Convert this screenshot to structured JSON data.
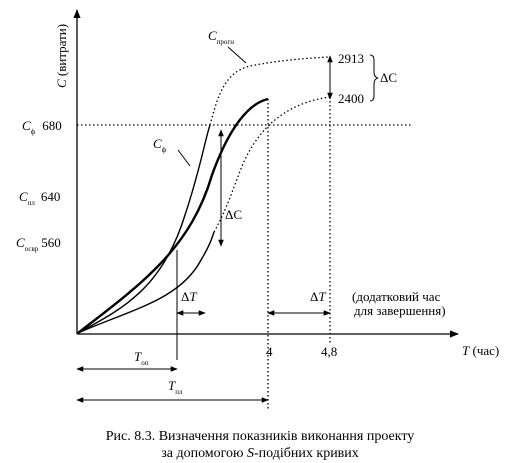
{
  "chart_data": {
    "type": "line",
    "xlabel_var": "T",
    "xlabel_unit": " (час)",
    "ylabel_var": "C",
    "ylabel_unit": " (витрати)",
    "x_ticks": [
      "4",
      "4,8"
    ],
    "y_ticks": [
      {
        "sym": "C",
        "sub": "ф",
        "value": "680"
      },
      {
        "sym": "C",
        "sub": "пл",
        "value": "640"
      },
      {
        "sym": "C",
        "sub": "освр",
        "value": "560"
      }
    ],
    "series": [
      {
        "name_sym": "C",
        "name_sub": "ф"
      },
      {
        "name_sym": "C",
        "name_sub": "прогн"
      }
    ],
    "right_values": [
      "2913",
      "2400"
    ],
    "delta_c": "ΔC",
    "delta_t": "ΔT",
    "extra_time_note": [
      "(додатковий час",
      "для завершення)"
    ],
    "bottom_labels": [
      {
        "sym": "T",
        "sub": "оп"
      },
      {
        "sym": "T",
        "sub": "пл"
      }
    ]
  },
  "caption": {
    "line1": "Рис. 8.3. Визначення показників виконання проекту",
    "line2_pre": "за допомогою ",
    "line2_it": "S",
    "line2_post": "-подібних кривих"
  },
  "colors": {
    "ink": "#000000",
    "background": "#ffffff"
  }
}
